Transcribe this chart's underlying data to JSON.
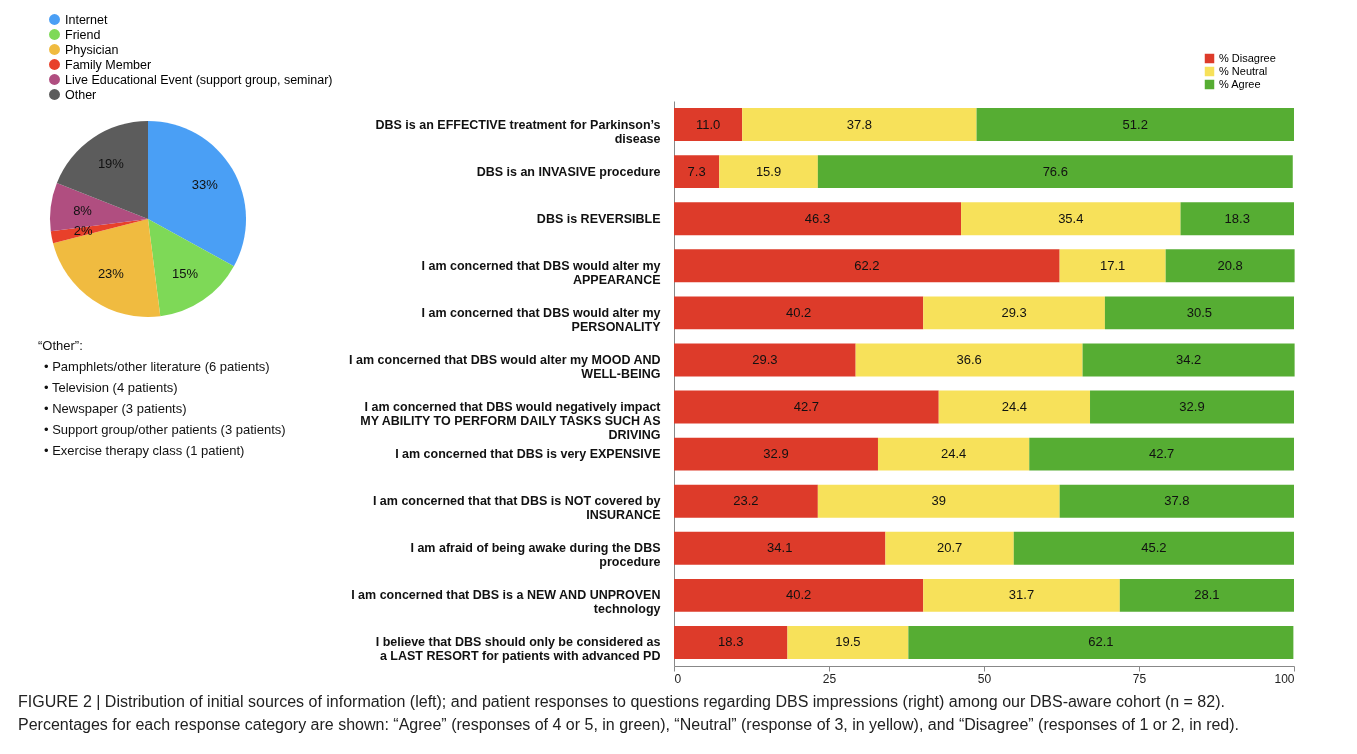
{
  "chart_data": [
    {
      "type": "pie",
      "categories": [
        "Internet",
        "Friend",
        "Physician",
        "Family Member",
        "Live Educational Event (support group, seminar)",
        "Other"
      ],
      "values": [
        33,
        15,
        23,
        2,
        8,
        19
      ],
      "colors": [
        "#4a9ff5",
        "#7ed957",
        "#f0bb40",
        "#e8402a",
        "#b04e80",
        "#5c5c5c"
      ],
      "value_labels": [
        "33%",
        "15%",
        "23%",
        "2%",
        "8%",
        "19%"
      ],
      "legend": "top",
      "annotations": [
        "“Other”:",
        "• Pamphlets/other literature (6 patients)",
        "• Television (4 patients)",
        "• Newspaper (3 patients)",
        "• Support group/other patients (3 patients)",
        "• Exercise therapy class (1 patient)"
      ]
    },
    {
      "type": "bar",
      "orientation": "horizontal",
      "stacked": true,
      "legend": "top right",
      "xlim": [
        0,
        100
      ],
      "xticks": [
        0,
        25,
        50,
        75,
        100
      ],
      "grid": false,
      "categories": [
        "DBS is an EFFECTIVE treatment for Parkinson’s disease",
        "DBS is an INVASIVE procedure",
        "DBS is REVERSIBLE",
        "I am concerned that DBS would alter my APPEARANCE",
        "I am concerned that DBS would alter my PERSONALITY",
        "I am concerned that DBS would alter my MOOD AND WELL-BEING",
        "I am concerned that DBS would negatively impact MY ABILITY TO PERFORM DAILY TASKS SUCH AS DRIVING",
        "I am concerned that DBS is very EXPENSIVE",
        "I am concerned that that DBS is NOT covered by INSURANCE",
        "I am afraid of being awake during the DBS procedure",
        "I am concerned that DBS is a NEW AND UNPROVEN technology",
        "I believe that DBS should only be considered as a LAST RESORT for patients with advanced PD"
      ],
      "series": [
        {
          "name": "% Disagree",
          "color": "#dd3b2a",
          "values": [
            11.0,
            7.3,
            46.3,
            62.2,
            40.2,
            29.3,
            42.7,
            32.9,
            23.2,
            34.1,
            40.2,
            18.3
          ],
          "value_labels": [
            "11.0",
            "7.3",
            "46.3",
            "62.2",
            "40.2",
            "29.3",
            "42.7",
            "32.9",
            "23.2",
            "34.1",
            "40.2",
            "18.3"
          ]
        },
        {
          "name": "% Neutral",
          "color": "#f7e15a",
          "values": [
            37.8,
            15.9,
            35.4,
            17.1,
            29.3,
            36.6,
            24.4,
            24.4,
            39,
            20.7,
            31.7,
            19.5
          ],
          "value_labels": [
            "37.8",
            "15.9",
            "35.4",
            "17.1",
            "29.3",
            "36.6",
            "24.4",
            "24.4",
            "39",
            "20.7",
            "31.7",
            "19.5"
          ]
        },
        {
          "name": "% Agree",
          "color": "#56ad33",
          "values": [
            51.2,
            76.6,
            18.3,
            20.8,
            30.5,
            34.2,
            32.9,
            42.7,
            37.8,
            45.2,
            28.1,
            62.1
          ],
          "value_labels": [
            "51.2",
            "76.6",
            "18.3",
            "20.8",
            "30.5",
            "34.2",
            "32.9",
            "42.7",
            "37.8",
            "45.2",
            "28.1",
            "62.1"
          ]
        }
      ],
      "annotations": [
        "FIGURE 2 | Distribution of initial sources of information (left); and patient responses to questions regarding DBS impressions (right) among our DBS-aware cohort (n = 82). Percentages for each response category are shown: “Agree” (responses of 4 or 5, in green), “Neutral” (response of 3, in yellow), and “Disagree” (responses of 1 or 2, in red)."
      ]
    }
  ]
}
